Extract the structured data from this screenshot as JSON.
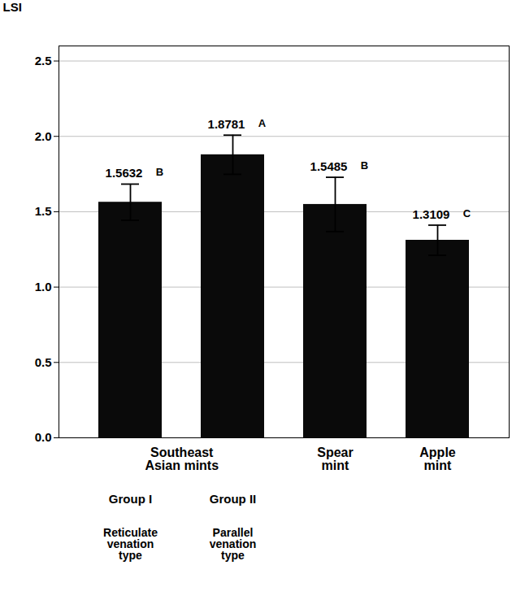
{
  "chart_data": {
    "type": "bar",
    "ylabel": "LSI",
    "categories": [
      "Group I",
      "Group II",
      "Spear\nmint",
      "Apple\nmint"
    ],
    "values": [
      1.5632,
      1.8781,
      1.5485,
      1.3109
    ],
    "errors": [
      0.12,
      0.13,
      0.18,
      0.1
    ],
    "data_labels": true,
    "sig_labels": [
      "B",
      "A",
      "B",
      "C"
    ],
    "color": "#0a0a0a",
    "ylim": [
      0.0,
      2.6
    ],
    "yticks": [
      {
        "value": 0.0,
        "label": "0.0"
      },
      0.5,
      {
        "value": 1.0,
        "label": "1.0"
      },
      1.5,
      {
        "value": 2.0,
        "label": "2.0"
      },
      2.5
    ],
    "grid": true,
    "annotations": [
      {
        "text": "Southeast\nAsian mints",
        "categories": [
          "Group I",
          "Group II"
        ]
      },
      {
        "text": "Reticulate\nvenation\ntype",
        "category": "Group I"
      },
      {
        "text": "Parallel\nvenation\ntype",
        "category": "Group II"
      }
    ]
  }
}
